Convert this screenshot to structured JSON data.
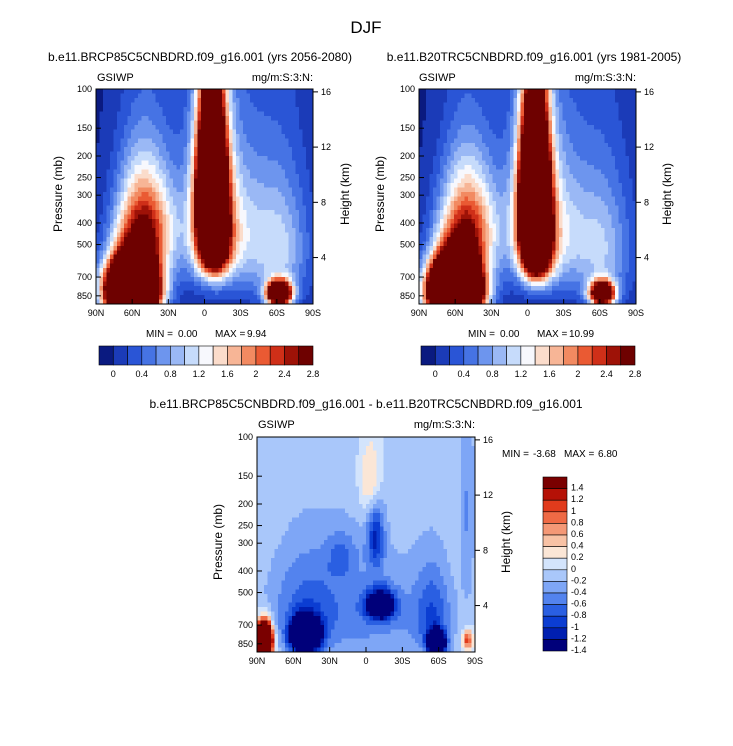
{
  "page_title": "DJF",
  "colors": {
    "absolute_scale": [
      "#0a1a80",
      "#1b3bb8",
      "#2a55d6",
      "#4673e4",
      "#6d95ee",
      "#9ab8f5",
      "#c6dbfb",
      "#f7f8fd",
      "#fbdccb",
      "#f7b596",
      "#f28a61",
      "#ea5a33",
      "#cf2f18",
      "#9e1207",
      "#6e0100"
    ],
    "difference_scale": [
      "#00007a",
      "#001fb0",
      "#0b3dd2",
      "#2a5fe2",
      "#5383ee",
      "#7ea6f6",
      "#a9c7fa",
      "#d3e4fc",
      "#fbe6d6",
      "#f8c2a5",
      "#f49876",
      "#ef6a45",
      "#e13b1c",
      "#b51106",
      "#7a0000"
    ],
    "background_blue": "#2a55d6",
    "difference_background": "#fbe6d6"
  },
  "chart_data": [
    {
      "type": "heatmap",
      "title": "b.e11.BRCP85C5CNBDRD.f09_g16.001 (yrs 2056-2080)",
      "left_label": "GSIWP",
      "right_label": "mg/m:S:3:N:",
      "xlabel": "",
      "ylabel": "Pressure (mb)",
      "ylabel_right": "Height (km)",
      "x_ticks": [
        "90N",
        "60N",
        "30N",
        "0",
        "30S",
        "60S",
        "90S"
      ],
      "y_ticks": [
        "100",
        "150",
        "200",
        "250",
        "300",
        "400",
        "500",
        "700",
        "850"
      ],
      "y_ticks_right": [
        "16",
        "12",
        "8",
        "4"
      ],
      "ylim": [
        100,
        925
      ],
      "stats": {
        "min_label": "MIN =",
        "min_value": "0.00",
        "max_label": "MAX =",
        "max_value": "9.94"
      },
      "colorbar_labels": [
        "0",
        "0.4",
        "0.8",
        "1.2",
        "1.6",
        "2",
        "2.4",
        "2.8"
      ],
      "levels": [
        0,
        0.2,
        0.4,
        0.6,
        0.8,
        1.0,
        1.2,
        1.4,
        1.6,
        1.8,
        2.0,
        2.2,
        2.4,
        2.6,
        2.8
      ],
      "features": [
        {
          "lat": 60,
          "p": 800,
          "amp": 9.9,
          "sx": 14,
          "sp": 160
        },
        {
          "lat": 50,
          "p": 420,
          "amp": 2.6,
          "sx": 16,
          "sp": 170
        },
        {
          "lat": -6,
          "p": 280,
          "amp": 6.8,
          "sx": 8,
          "sp": 150
        },
        {
          "lat": -8,
          "p": 520,
          "amp": 2.4,
          "sx": 9,
          "sp": 120
        },
        {
          "lat": -12,
          "p": 420,
          "amp": 1.6,
          "sx": 22,
          "sp": 230
        },
        {
          "lat": -62,
          "p": 830,
          "amp": 5.0,
          "sx": 7,
          "sp": 70
        },
        {
          "lat": -62,
          "p": 520,
          "amp": 1.1,
          "sx": 18,
          "sp": 260
        }
      ]
    },
    {
      "type": "heatmap",
      "title": "b.e11.B20TRC5CNBDRD.f09_g16.001 (yrs 1981-2005)",
      "left_label": "GSIWP",
      "right_label": "mg/m:S:3:N:",
      "xlabel": "",
      "ylabel": "Pressure (mb)",
      "ylabel_right": "Height (km)",
      "x_ticks": [
        "90N",
        "60N",
        "30N",
        "0",
        "30S",
        "60S",
        "90S"
      ],
      "y_ticks": [
        "100",
        "150",
        "200",
        "250",
        "300",
        "400",
        "500",
        "700",
        "850"
      ],
      "y_ticks_right": [
        "16",
        "12",
        "8",
        "4"
      ],
      "ylim": [
        100,
        925
      ],
      "stats": {
        "min_label": "MIN =",
        "min_value": "0.00",
        "max_label": "MAX =",
        "max_value": "10.99"
      },
      "colorbar_labels": [
        "0",
        "0.4",
        "0.8",
        "1.2",
        "1.6",
        "2",
        "2.4",
        "2.8"
      ],
      "levels": [
        0,
        0.2,
        0.4,
        0.6,
        0.8,
        1.0,
        1.2,
        1.4,
        1.6,
        1.8,
        2.0,
        2.2,
        2.4,
        2.6,
        2.8
      ],
      "features": [
        {
          "lat": 60,
          "p": 800,
          "amp": 10.9,
          "sx": 14,
          "sp": 160
        },
        {
          "lat": 50,
          "p": 420,
          "amp": 2.4,
          "sx": 16,
          "sp": 170
        },
        {
          "lat": -6,
          "p": 320,
          "amp": 7.2,
          "sx": 8,
          "sp": 170
        },
        {
          "lat": -8,
          "p": 560,
          "amp": 2.0,
          "sx": 9,
          "sp": 120
        },
        {
          "lat": -12,
          "p": 420,
          "amp": 1.6,
          "sx": 22,
          "sp": 230
        },
        {
          "lat": -62,
          "p": 830,
          "amp": 4.5,
          "sx": 7,
          "sp": 70
        },
        {
          "lat": -62,
          "p": 520,
          "amp": 1.0,
          "sx": 18,
          "sp": 260
        }
      ]
    },
    {
      "type": "heatmap",
      "title": "b.e11.BRCP85C5CNBDRD.f09_g16.001 - b.e11.B20TRC5CNBDRD.f09_g16.001",
      "left_label": "GSIWP",
      "right_label": "mg/m:S:3:N:",
      "xlabel": "",
      "ylabel": "Pressure (mb)",
      "ylabel_right": "Height (km)",
      "x_ticks": [
        "90N",
        "60N",
        "30N",
        "0",
        "30S",
        "60S",
        "90S"
      ],
      "y_ticks": [
        "100",
        "150",
        "200",
        "250",
        "300",
        "400",
        "500",
        "700",
        "850"
      ],
      "y_ticks_right": [
        "16",
        "12",
        "8",
        "4"
      ],
      "ylim": [
        100,
        925
      ],
      "stats": {
        "min_label": "MIN =",
        "min_value": "-3.68",
        "max_label": "MAX =",
        "max_value": "6.80"
      },
      "colorbar_labels": [
        "1.4",
        "1.2",
        "1",
        "0.8",
        "0.6",
        "0.4",
        "0.2",
        "0",
        "-0.2",
        "-0.4",
        "-0.6",
        "-0.8",
        "-1",
        "-1.2",
        "-1.4"
      ],
      "levels": [
        -1.4,
        -1.2,
        -1.0,
        -0.8,
        -0.6,
        -0.4,
        -0.2,
        0,
        0.2,
        0.4,
        0.6,
        0.8,
        1.0,
        1.2,
        1.4
      ],
      "features": [
        {
          "lat": 84,
          "p": 820,
          "amp": 6.8,
          "sx": 4,
          "sp": 90
        },
        {
          "lat": 50,
          "p": 780,
          "amp": -3.6,
          "sx": 8,
          "sp": 90
        },
        {
          "lat": 50,
          "p": 560,
          "amp": -0.5,
          "sx": 22,
          "sp": 220
        },
        {
          "lat": -12,
          "p": 570,
          "amp": -2.0,
          "sx": 8,
          "sp": 60
        },
        {
          "lat": -8,
          "p": 280,
          "amp": -0.9,
          "sx": 5,
          "sp": 70
        },
        {
          "lat": -4,
          "p": 160,
          "amp": 0.6,
          "sx": 6,
          "sp": 45
        },
        {
          "lat": 20,
          "p": 340,
          "amp": -0.4,
          "sx": 9,
          "sp": 60
        },
        {
          "lat": -58,
          "p": 840,
          "amp": -2.8,
          "sx": 5,
          "sp": 70
        },
        {
          "lat": -55,
          "p": 620,
          "amp": -0.6,
          "sx": 10,
          "sp": 200
        },
        {
          "lat": -5,
          "p": 640,
          "amp": -0.45,
          "sx": 45,
          "sp": 260
        },
        {
          "lat": -84,
          "p": 200,
          "amp": -0.4,
          "sx": 4,
          "sp": 200
        },
        {
          "lat": -84,
          "p": 820,
          "amp": 1.2,
          "sx": 3,
          "sp": 60
        }
      ]
    }
  ]
}
